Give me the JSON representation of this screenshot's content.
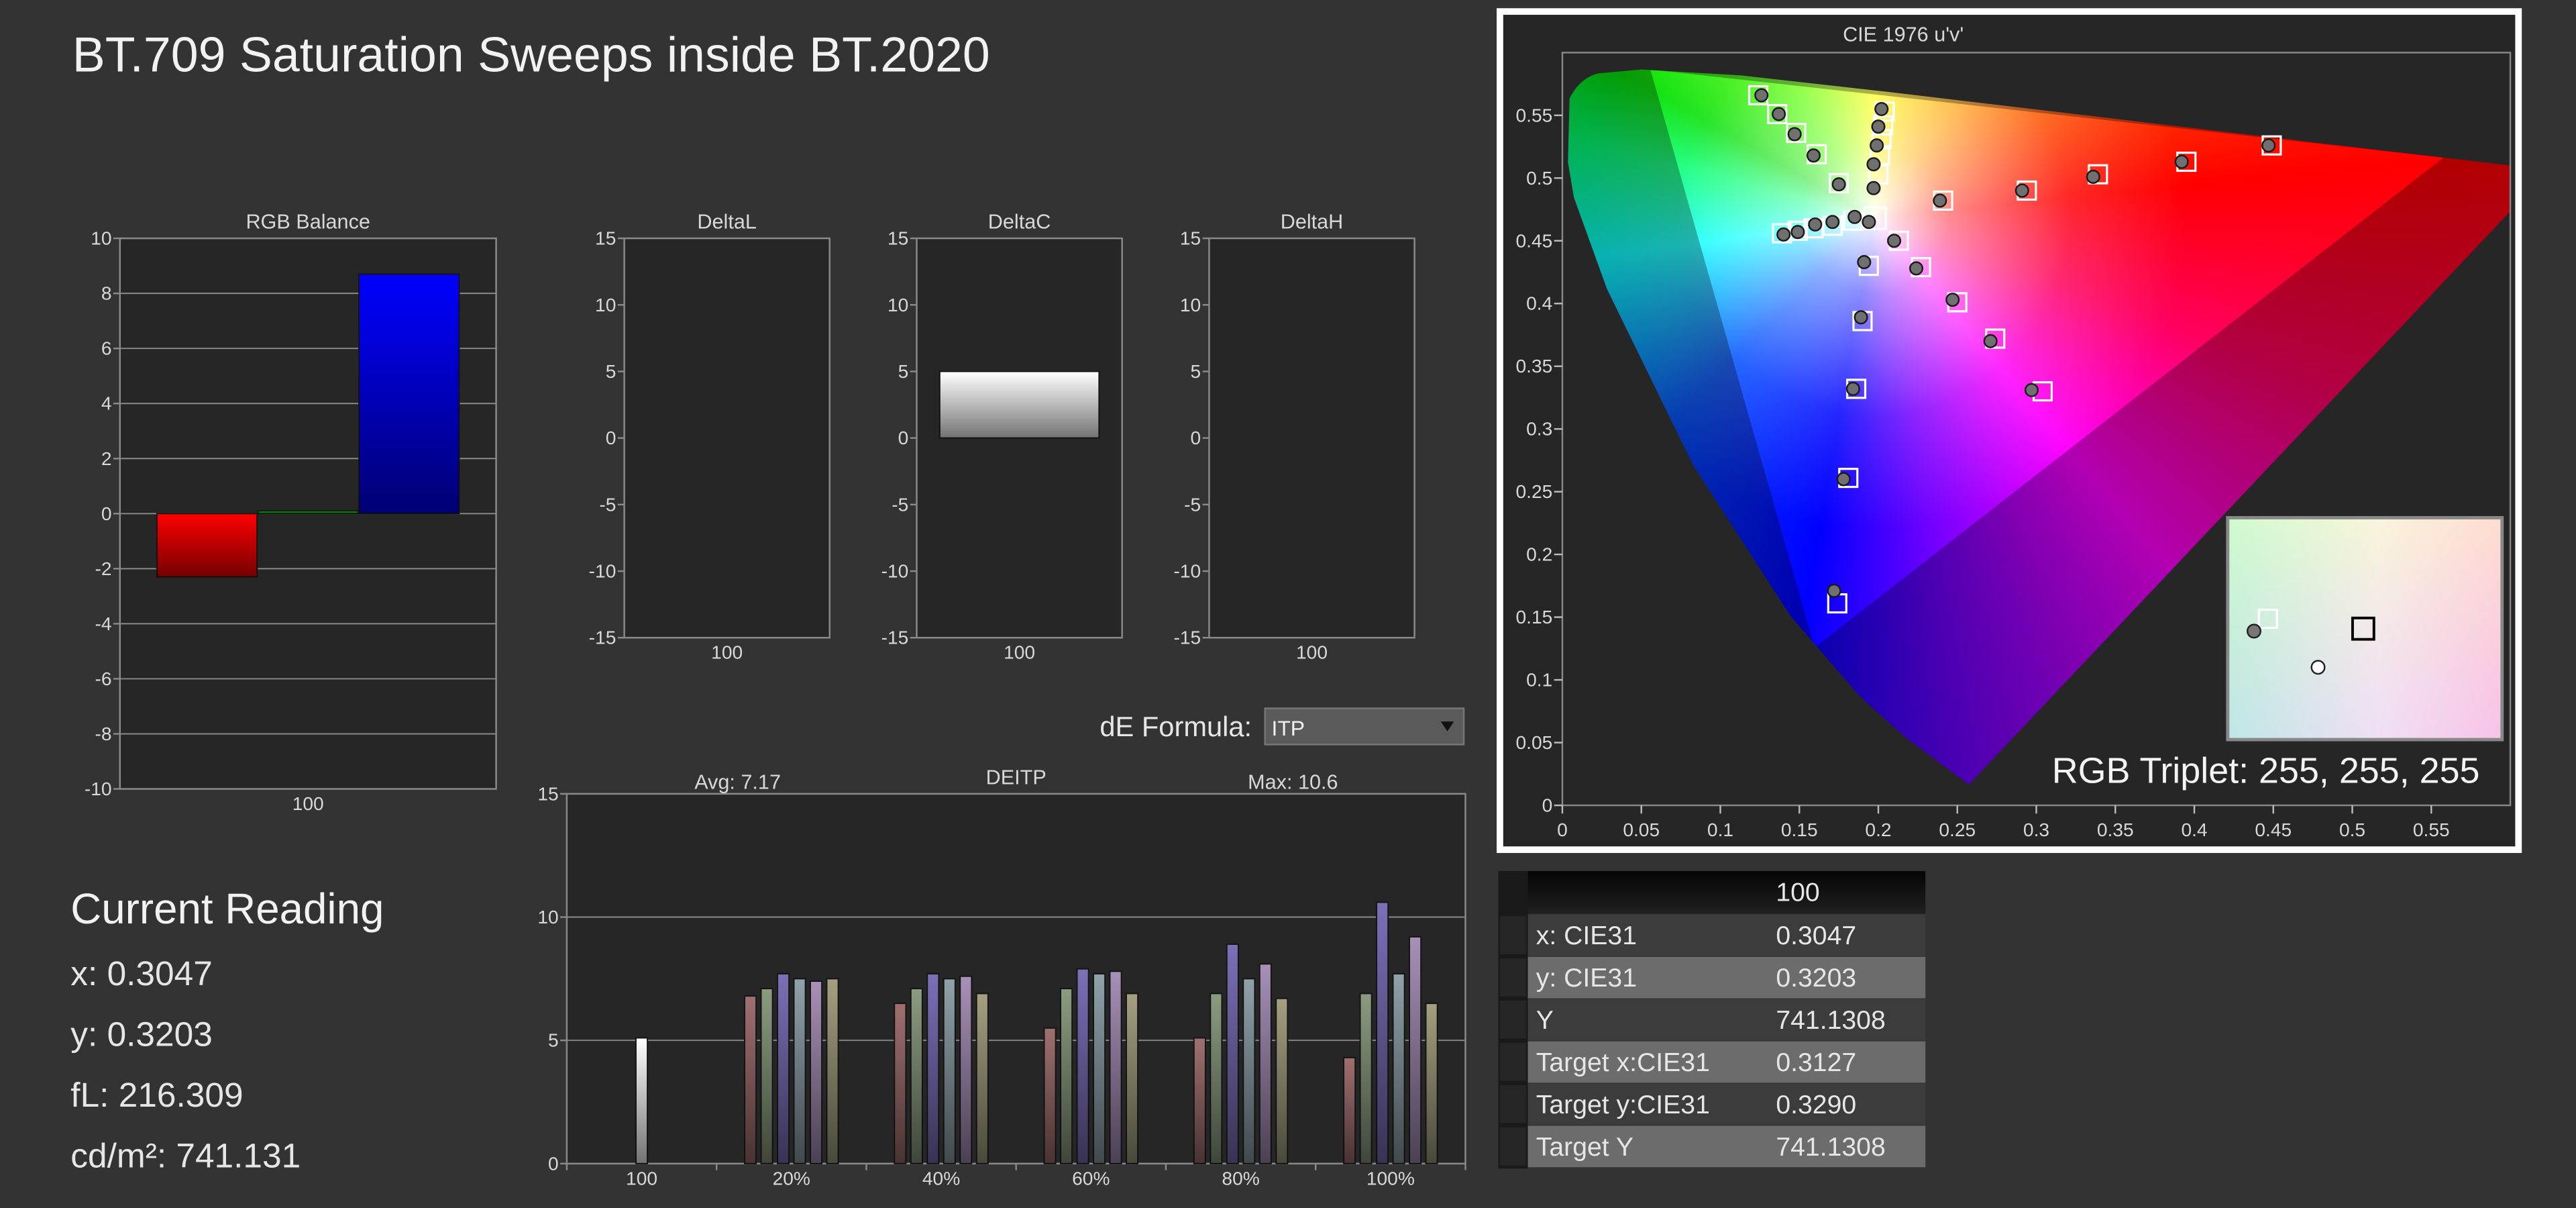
{
  "title": "BT.709 Saturation Sweeps inside BT.2020",
  "current_reading": {
    "title": "Current Reading",
    "lines": [
      "x: 0.3047",
      "y: 0.3203",
      "fL: 216.309",
      "cd/m²: 741.131"
    ]
  },
  "de_formula": {
    "label": "dE Formula:",
    "value": "ITP"
  },
  "table": {
    "column_header": "100",
    "rows": [
      [
        "x: CIE31",
        "0.3047"
      ],
      [
        "y: CIE31",
        "0.3203"
      ],
      [
        "Y",
        "741.1308"
      ],
      [
        "Target x:CIE31",
        "0.3127"
      ],
      [
        "Target y:CIE31",
        "0.3290"
      ],
      [
        "Target Y",
        "741.1308"
      ]
    ]
  },
  "chart_data": [
    {
      "type": "bar",
      "title": "RGB Balance",
      "categories": [
        "100"
      ],
      "series": [
        {
          "color": "#ff0000",
          "values": [
            -2.3
          ]
        },
        {
          "color": "#00c000",
          "values": [
            0.1
          ]
        },
        {
          "color": "#0000ff",
          "values": [
            8.7
          ]
        }
      ],
      "ylim": [
        -10,
        10
      ],
      "yticks": [
        -10,
        -8,
        -6,
        -4,
        -2,
        0,
        2,
        4,
        6,
        8,
        10
      ],
      "grid": true
    },
    {
      "type": "bar",
      "title": "DeltaL",
      "categories": [
        "100"
      ],
      "series": [
        {
          "color": "#ffffff",
          "values": [
            0
          ]
        }
      ],
      "ylim": [
        -15,
        15
      ],
      "yticks": [
        -15,
        -10,
        -5,
        0,
        5,
        10,
        15
      ],
      "grid": false
    },
    {
      "type": "bar",
      "title": "DeltaC",
      "categories": [
        "100"
      ],
      "series": [
        {
          "color": "#ffffff",
          "values": [
            5
          ]
        }
      ],
      "ylim": [
        -15,
        15
      ],
      "yticks": [
        -15,
        -10,
        -5,
        0,
        5,
        10,
        15
      ],
      "grid": false
    },
    {
      "type": "bar",
      "title": "DeltaH",
      "categories": [
        "100"
      ],
      "series": [
        {
          "color": "#ffffff",
          "values": [
            0
          ]
        }
      ],
      "ylim": [
        -15,
        15
      ],
      "yticks": [
        -15,
        -10,
        -5,
        0,
        5,
        10,
        15
      ],
      "grid": false
    },
    {
      "type": "bar",
      "title": "DEITP",
      "annotations": [
        "Avg: 7.17",
        "Max: 10.6"
      ],
      "categories": [
        "100",
        "20%",
        "40%",
        "60%",
        "80%",
        "100%"
      ],
      "series": [
        {
          "color": "#ffffff",
          "values": [
            5.1,
            null,
            null,
            null,
            null,
            null
          ]
        },
        {
          "color": "#a07070",
          "values": [
            null,
            6.8,
            6.5,
            5.5,
            5.1,
            4.3
          ]
        },
        {
          "color": "#8c9c80",
          "values": [
            null,
            7.1,
            7.1,
            7.1,
            6.9,
            6.9
          ]
        },
        {
          "color": "#7c70b8",
          "values": [
            null,
            7.7,
            7.7,
            7.9,
            8.9,
            10.6
          ]
        },
        {
          "color": "#90a2aa",
          "values": [
            null,
            7.5,
            7.5,
            7.7,
            7.5,
            7.7
          ]
        },
        {
          "color": "#a890b8",
          "values": [
            null,
            7.4,
            7.6,
            7.8,
            8.1,
            9.2
          ]
        },
        {
          "color": "#a4a080",
          "values": [
            null,
            7.5,
            6.9,
            6.9,
            6.7,
            6.5
          ]
        }
      ],
      "ylim": [
        0,
        15
      ],
      "yticks": [
        0,
        5,
        10,
        15
      ],
      "grid": true
    },
    {
      "type": "scatter",
      "title": "CIE 1976 u'v'",
      "annotation": "RGB Triplet: 255, 255, 255",
      "xlim": [
        0,
        0.6
      ],
      "ylim": [
        0,
        0.6
      ],
      "xticks": [
        0,
        0.05,
        0.1,
        0.15,
        0.2,
        0.25,
        0.3,
        0.35,
        0.4,
        0.45,
        0.5,
        0.55
      ],
      "yticks": [
        0,
        0.05,
        0.1,
        0.15,
        0.2,
        0.25,
        0.3,
        0.35,
        0.4,
        0.45,
        0.5,
        0.55
      ],
      "series": [
        {
          "marker": "square",
          "color": "#ffffff",
          "x": [
            0.198,
            0.241,
            0.294,
            0.339,
            0.395,
            0.449,
            0.175,
            0.161,
            0.148,
            0.136,
            0.124,
            0.194,
            0.19,
            0.186,
            0.181,
            0.174,
            0.184,
            0.171,
            0.159,
            0.149,
            0.139,
            0.213,
            0.227,
            0.25,
            0.274,
            0.304,
            0.2,
            0.201,
            0.202,
            0.203,
            0.204
          ],
          "y": [
            0.468,
            0.482,
            0.49,
            0.503,
            0.513,
            0.526,
            0.496,
            0.519,
            0.536,
            0.551,
            0.566,
            0.43,
            0.386,
            0.332,
            0.261,
            0.161,
            0.466,
            0.462,
            0.46,
            0.458,
            0.456,
            0.45,
            0.429,
            0.401,
            0.372,
            0.33,
            0.503,
            0.518,
            0.531,
            0.542,
            0.553
          ]
        },
        {
          "marker": "circle",
          "color": "#707070",
          "x": [
            0.194,
            0.239,
            0.291,
            0.336,
            0.392,
            0.447,
            0.175,
            0.159,
            0.147,
            0.137,
            0.126,
            0.191,
            0.189,
            0.184,
            0.178,
            0.172,
            0.185,
            0.171,
            0.16,
            0.149,
            0.14,
            0.21,
            0.224,
            0.247,
            0.271,
            0.297,
            0.197,
            0.197,
            0.199,
            0.2,
            0.202
          ],
          "y": [
            0.465,
            0.482,
            0.49,
            0.501,
            0.513,
            0.526,
            0.495,
            0.518,
            0.535,
            0.551,
            0.566,
            0.433,
            0.389,
            0.332,
            0.26,
            0.171,
            0.469,
            0.465,
            0.463,
            0.457,
            0.455,
            0.45,
            0.428,
            0.403,
            0.37,
            0.331,
            0.492,
            0.511,
            0.526,
            0.541,
            0.555
          ]
        }
      ]
    }
  ]
}
